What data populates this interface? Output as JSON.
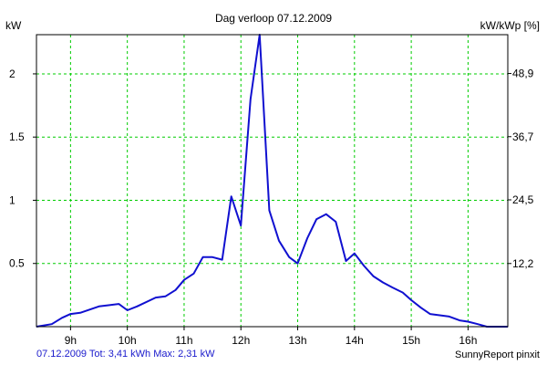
{
  "chart_data": {
    "type": "line",
    "title": "Dag  verloop 07.12.2009",
    "ylabel": "kW",
    "y2label": "kW/kWp [%]",
    "ylim": [
      0,
      2.31
    ],
    "y_ticks": [
      0.5,
      1,
      1.5,
      2
    ],
    "y_tick_labels": [
      "0.5",
      "1",
      "1.5",
      "2"
    ],
    "y2_ticks": [
      12.2,
      24.5,
      36.7,
      48.9
    ],
    "y2_tick_labels": [
      "12,2",
      "24,5",
      "36,7",
      "48,9"
    ],
    "y2_max": 56.4,
    "xlim": [
      8.4,
      16.7
    ],
    "x_ticks": [
      9,
      10,
      11,
      12,
      13,
      14,
      15,
      16
    ],
    "x_tick_labels": [
      "9h",
      "10h",
      "11h",
      "12h",
      "13h",
      "14h",
      "15h",
      "16h"
    ],
    "grid": true,
    "line_color": "#1010d0",
    "grid_color": "#00cc00",
    "series": [
      {
        "x": [
          8.4,
          8.67,
          8.85,
          9.0,
          9.17,
          9.5,
          9.67,
          9.85,
          10.0,
          10.17,
          10.5,
          10.67,
          10.85,
          11.0,
          11.17,
          11.33,
          11.5,
          11.67,
          11.83,
          12.0,
          12.17,
          12.33,
          12.5,
          12.67,
          12.85,
          13.0,
          13.17,
          13.33,
          13.5,
          13.67,
          13.85,
          14.0,
          14.17,
          14.33,
          14.5,
          14.67,
          14.85,
          15.0,
          15.17,
          15.33,
          15.5,
          15.67,
          15.85,
          16.0,
          16.17,
          16.33,
          16.7
        ],
        "values": [
          0.0,
          0.02,
          0.07,
          0.1,
          0.11,
          0.16,
          0.17,
          0.18,
          0.13,
          0.16,
          0.23,
          0.24,
          0.29,
          0.37,
          0.42,
          0.55,
          0.55,
          0.53,
          1.03,
          0.8,
          1.8,
          2.31,
          0.92,
          0.68,
          0.55,
          0.5,
          0.7,
          0.85,
          0.89,
          0.83,
          0.52,
          0.58,
          0.48,
          0.4,
          0.35,
          0.31,
          0.27,
          0.21,
          0.15,
          0.1,
          0.09,
          0.08,
          0.05,
          0.04,
          0.02,
          0.0,
          0.0
        ]
      }
    ]
  },
  "footer": {
    "summary": "07.12.2009 Tot: 3,41 kWh Max: 2,31 kW",
    "brand": "SunnyReport pinxit"
  }
}
